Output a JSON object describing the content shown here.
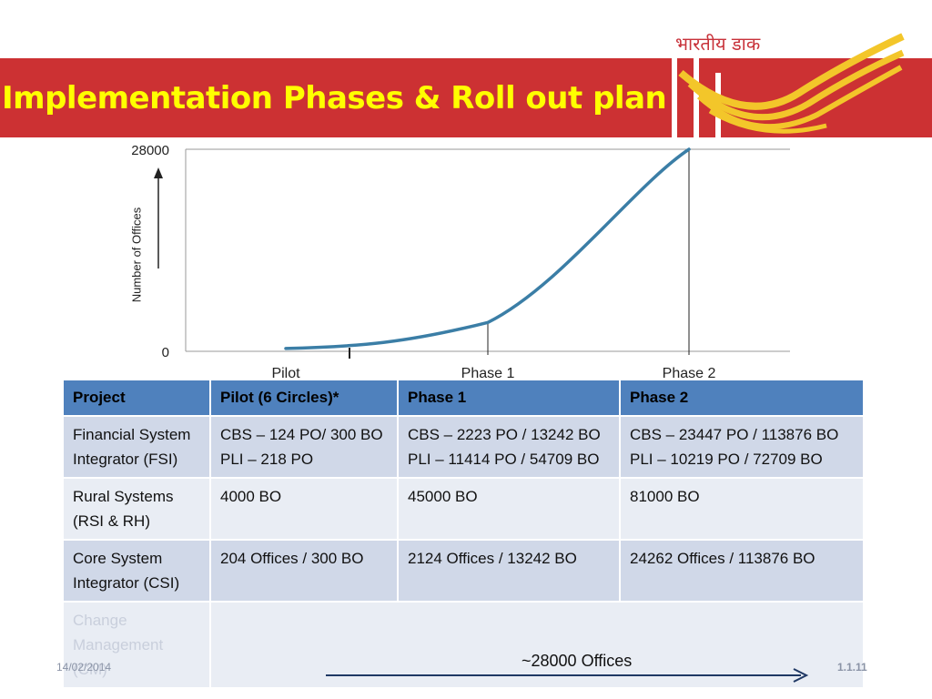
{
  "slide": {
    "title": "Implementation Phases & Roll out plan",
    "logo_text": "भारतीय डाक",
    "date": "14/02/2014",
    "slide_number": "1.1.11",
    "offices_note": "~28000 Offices",
    "accent_color": "#cc3133",
    "title_color": "#ffff00"
  },
  "chart_data": {
    "type": "line",
    "ylabel": "Number of Offices",
    "yticks": [
      "28000",
      "0"
    ],
    "ylim": [
      0,
      28000
    ],
    "categories": [
      "Pilot",
      "Phase 1",
      "Phase 2"
    ],
    "series": [
      {
        "values": [
          400,
          4000,
          28000
        ]
      }
    ],
    "color": "#3b7ea6"
  },
  "table": {
    "headers": [
      "Project",
      "Pilot (6 Circles)*",
      "Phase 1",
      "Phase 2"
    ],
    "rows": [
      {
        "project": "Financial System Integrator (FSI)",
        "pilot": [
          "CBS –  124 PO/ 300 BO",
          "PLI – 218 PO"
        ],
        "phase1": [
          "CBS – 2223 PO / 13242 BO",
          "PLI – 11414 PO / 54709 BO"
        ],
        "phase2": [
          "CBS – 23447 PO / 113876 BO",
          "PLI – 10219 PO / 72709 BO"
        ]
      },
      {
        "project": "Rural Systems (RSI & RH)",
        "pilot": [
          "4000 BO"
        ],
        "phase1": [
          "45000 BO"
        ],
        "phase2": [
          "81000 BO"
        ]
      },
      {
        "project": "Core System Integrator (CSI)",
        "pilot": [
          "204 Offices / 300 BO"
        ],
        "phase1": [
          "2124 Offices / 13242 BO"
        ],
        "phase2": [
          "24262 Offices / 113876 BO"
        ]
      },
      {
        "project": "Change Management (CM)",
        "pilot": [],
        "phase1": [],
        "phase2": []
      }
    ]
  }
}
